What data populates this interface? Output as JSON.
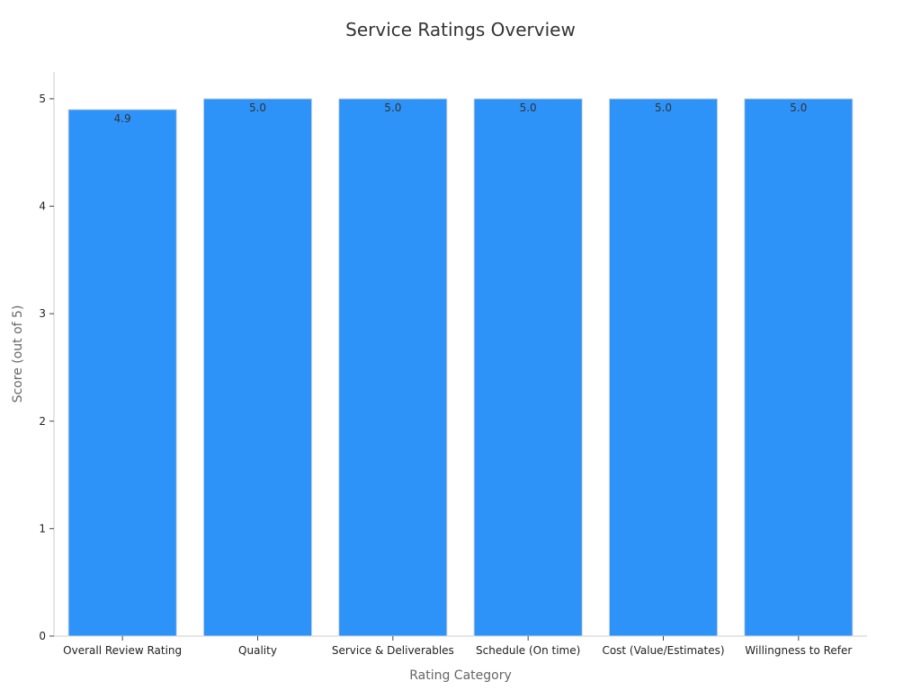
{
  "chart_data": {
    "type": "bar",
    "title": "Service Ratings Overview",
    "xlabel": "Rating Category",
    "ylabel": "Score (out of 5)",
    "categories": [
      "Overall Review Rating",
      "Quality",
      "Service & Deliverables",
      "Schedule (On time)",
      "Cost (Value/Estimates)",
      "Willingness to Refer"
    ],
    "values": [
      4.9,
      5.0,
      5.0,
      5.0,
      5.0,
      5.0
    ],
    "data_labels": [
      "4.9",
      "5.0",
      "5.0",
      "5.0",
      "5.0",
      "5.0"
    ],
    "ylim": [
      0,
      5.25
    ],
    "yticks": [
      0,
      1,
      2,
      3,
      4,
      5
    ],
    "grid": false,
    "legend": "none",
    "bar_color": "#2d93f8"
  }
}
